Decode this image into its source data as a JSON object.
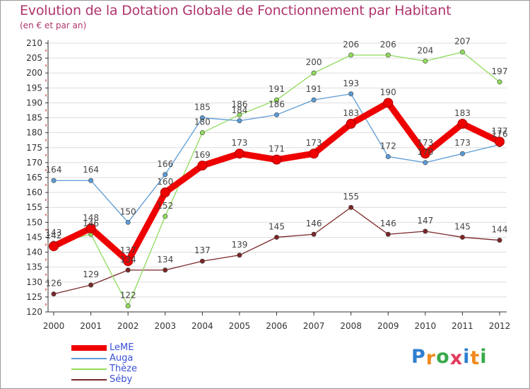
{
  "title": "Evolution de la Dotation Globale de Fonctionnement par Habitant",
  "subtitle": "(en € et par an)",
  "brand": "Proxiti",
  "colors": {
    "title": "#b0346d",
    "axis": "#333333",
    "grid": "#dddddd",
    "legend_text": "#3a4fd8"
  },
  "chart_data": {
    "type": "line",
    "title": "Evolution de la Dotation Globale de Fonctionnement par Habitant",
    "subtitle": "(en € et par an)",
    "xlabel": "",
    "ylabel": "",
    "ylim": [
      120,
      210
    ],
    "ytick_step": 5,
    "grid": "horizontal",
    "legend_position": "bottom-left",
    "x": [
      "2000",
      "2001",
      "2002",
      "2003",
      "2004",
      "2005",
      "2006",
      "2007",
      "2008",
      "2009",
      "2010",
      "2011",
      "2012"
    ],
    "series": [
      {
        "name": "LeME",
        "color": "#ee0000",
        "values": [
          142,
          148,
          137,
          160,
          169,
          173,
          171,
          173,
          183,
          190,
          173,
          183,
          177
        ]
      },
      {
        "name": "Auga",
        "color": "#5b9bd5",
        "values": [
          164,
          164,
          150,
          166,
          185,
          184,
          186,
          191,
          193,
          172,
          170,
          173,
          176
        ]
      },
      {
        "name": "Thèze",
        "color": "#8fdb5a",
        "values": [
          143,
          146,
          122,
          152,
          180,
          186,
          191,
          200,
          206,
          206,
          204,
          207,
          197
        ]
      },
      {
        "name": "Séby",
        "color": "#7a2626",
        "values": [
          126,
          129,
          134,
          134,
          137,
          139,
          145,
          146,
          155,
          146,
          147,
          145,
          144
        ]
      }
    ]
  }
}
